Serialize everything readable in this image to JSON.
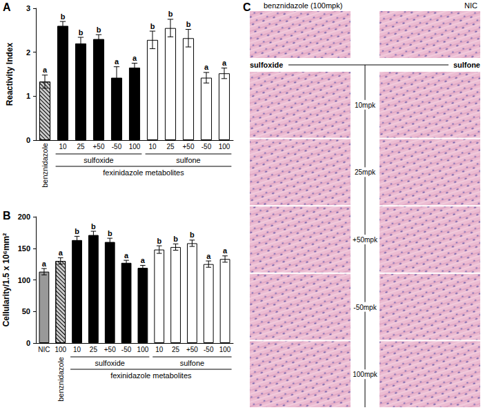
{
  "chart_data": [
    {
      "type": "bar",
      "title": "A",
      "ylabel": "Reactivity Index",
      "categories": [
        "benznidazole",
        "10",
        "25",
        "+50",
        "-50",
        "100",
        "10",
        "25",
        "+50",
        "-50",
        "100"
      ],
      "values": [
        1.33,
        2.6,
        2.2,
        2.3,
        1.42,
        1.65,
        2.28,
        2.55,
        2.32,
        1.42,
        1.52
      ],
      "errors": [
        0.15,
        0.1,
        0.14,
        0.1,
        0.25,
        0.1,
        0.2,
        0.2,
        0.2,
        0.12,
        0.12
      ],
      "letters": [
        "a",
        "b",
        "b",
        "b",
        "a",
        "a",
        "b",
        "b",
        "b",
        "a",
        "a"
      ],
      "colors": [
        "#cccccc",
        "#000000",
        "#000000",
        "#000000",
        "#000000",
        "#000000",
        "#ffffff",
        "#ffffff",
        "#ffffff",
        "#ffffff",
        "#ffffff"
      ],
      "ylim": [
        0,
        3
      ],
      "yticks": [
        0,
        1,
        2,
        3
      ],
      "grid": false,
      "groups": [
        {
          "label": "sulfoxide",
          "start": 1,
          "end": 5
        },
        {
          "label": "sulfone",
          "start": 6,
          "end": 10
        }
      ],
      "supergroups": [
        {
          "label": "fexinidazole metabolites",
          "start": 1,
          "end": 10
        }
      ]
    },
    {
      "type": "bar",
      "title": "B",
      "ylabel": "Cellularity/1.5 x 10⁶mm²",
      "categories": [
        "NIC",
        "100",
        "10",
        "25",
        "+50",
        "-50",
        "100",
        "10",
        "25",
        "+50",
        "-50",
        "100"
      ],
      "values": [
        113,
        130,
        163,
        171,
        160,
        127,
        119,
        148,
        152,
        158,
        125,
        133
      ],
      "errors": [
        5,
        5,
        6,
        6,
        6,
        4,
        4,
        6,
        5,
        5,
        5,
        5
      ],
      "letters": [
        "a",
        "a",
        "b",
        "b",
        "b",
        "a",
        "a",
        "b",
        "b",
        "b",
        "a",
        "a"
      ],
      "colors": [
        "#999999",
        "#cccccc",
        "#000000",
        "#000000",
        "#000000",
        "#000000",
        "#000000",
        "#ffffff",
        "#ffffff",
        "#ffffff",
        "#ffffff",
        "#ffffff"
      ],
      "ylim": [
        0,
        200
      ],
      "yticks": [
        0,
        50,
        100,
        150,
        200
      ],
      "grid": false,
      "groups": [
        {
          "label": "benznidazole",
          "start": 1,
          "end": 1
        },
        {
          "label": "sulfoxide",
          "start": 2,
          "end": 6
        },
        {
          "label": "sulfone",
          "start": 7,
          "end": 11
        }
      ],
      "supergroups": [
        {
          "label": "fexinidazole metabolites",
          "start": 2,
          "end": 11
        }
      ]
    }
  ],
  "panel_c": {
    "title": "C",
    "top_left": "benznidazole (100mpk)",
    "top_right": "NIC",
    "columns": [
      "sulfoxide",
      "sulfone"
    ],
    "rows": [
      "10mpk",
      "25mpk",
      "+50mpk",
      "-50mpk",
      "100mpk"
    ]
  }
}
